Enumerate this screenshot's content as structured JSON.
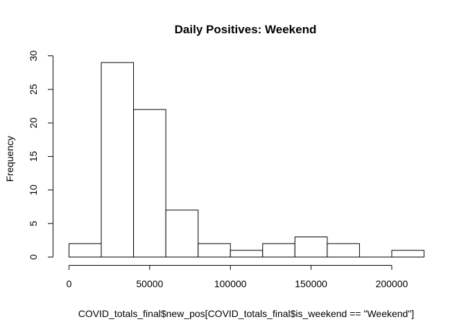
{
  "chart_data": {
    "type": "bar",
    "title": "Daily Positives: Weekend",
    "xlabel": "COVID_totals_final$new_pos[COVID_totals_final$is_weekend == \"Weekend\"]",
    "ylabel": "Frequency",
    "bin_edges": [
      0,
      20000,
      40000,
      60000,
      80000,
      100000,
      120000,
      140000,
      160000,
      180000,
      200000,
      220000
    ],
    "values": [
      2,
      29,
      22,
      7,
      2,
      1,
      2,
      3,
      2,
      0,
      1
    ],
    "xlim": [
      0,
      220000
    ],
    "ylim": [
      0,
      30
    ],
    "x_ticks": [
      0,
      50000,
      100000,
      150000,
      200000
    ],
    "x_tick_labels": [
      "0",
      "50000",
      "100000",
      "150000",
      "200000"
    ],
    "y_ticks": [
      0,
      5,
      10,
      15,
      20,
      25,
      30
    ],
    "y_tick_labels": [
      "0",
      "5",
      "10",
      "15",
      "20",
      "25",
      "30"
    ],
    "grid": false,
    "colors": {
      "bar_fill": "#ffffff",
      "bar_stroke": "#000000"
    }
  }
}
